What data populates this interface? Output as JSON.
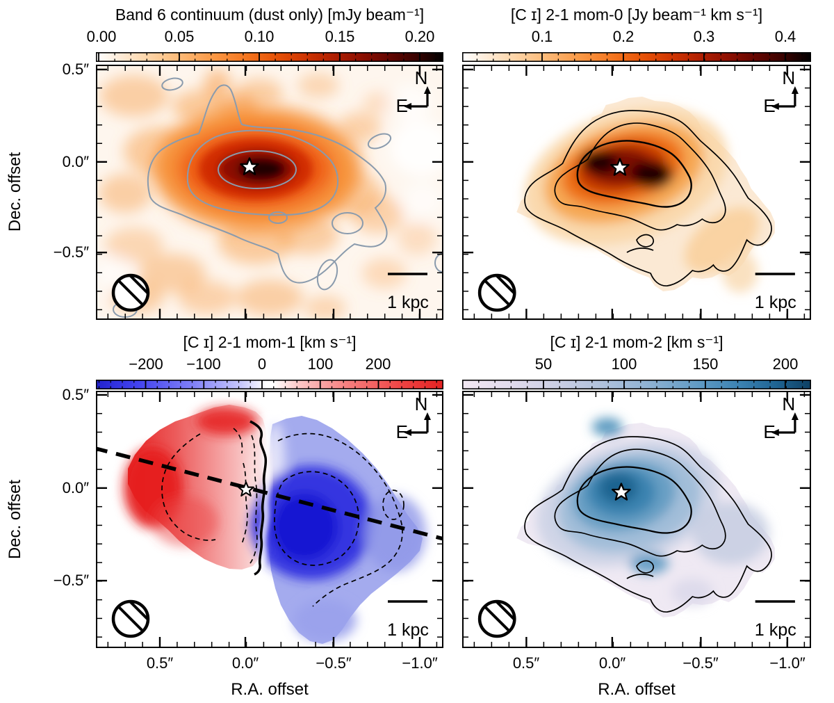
{
  "figure": {
    "ylabel": "Dec. offset",
    "xlabel": "R.A. offset",
    "y_tick_labels": [
      "0.5″",
      "0.0″",
      "−0.5″"
    ],
    "x_tick_labels": [
      "0.5″",
      "0.0″",
      "−0.5″",
      "−1.0″"
    ],
    "compass": {
      "north": "N",
      "east": "E"
    },
    "scalebar_label": "1 kpc"
  },
  "panels": [
    {
      "id": "band6-continuum",
      "title": "Band 6 continuum (dust only) [mJy beam⁻¹]",
      "cbar_ticks": [
        "0.00",
        "0.05",
        "0.10",
        "0.15",
        "0.20"
      ]
    },
    {
      "id": "ci21-mom0",
      "title": "[C ɪ] 2-1 mom-0 [Jy beam⁻¹ km s⁻¹]",
      "cbar_ticks": [
        "0.1",
        "0.2",
        "0.3",
        "0.4"
      ]
    },
    {
      "id": "ci21-mom1",
      "title": "[C ɪ] 2-1 mom-1 [km s⁻¹]",
      "cbar_ticks": [
        "−200",
        "−100",
        "0",
        "100",
        "200"
      ]
    },
    {
      "id": "ci21-mom2",
      "title": "[C ɪ] 2-1 mom-2 [km s⁻¹]",
      "cbar_ticks": [
        "50",
        "100",
        "150",
        "200"
      ]
    }
  ],
  "chart_data": [
    {
      "type": "heatmap",
      "panel": "top-left",
      "title": "Band 6 continuum (dust only) [mJy beam⁻¹]",
      "colorbar": {
        "orientation": "horizontal",
        "position": "top",
        "tick_values": [
          0.0,
          0.05,
          0.1,
          0.15,
          0.2
        ],
        "value_range": [
          0.0,
          0.215
        ],
        "units": "mJy beam⁻¹",
        "colormap_stops": [
          "#ffffff",
          "#fcba78",
          "#f4731d",
          "#d03603",
          "#8f1001",
          "#000000"
        ]
      },
      "x_axis": {
        "label": "R.A. offset",
        "tick_values_arcsec": [
          0.5,
          0.0,
          -0.5,
          -1.0
        ],
        "range_arcsec": [
          0.87,
          -1.13
        ],
        "minor_step_arcsec": 0.1,
        "tick_labels_shown": false
      },
      "y_axis": {
        "label": "Dec. offset",
        "tick_values_arcsec": [
          0.5,
          0.0,
          -0.5
        ],
        "range_arcsec": [
          0.53,
          -0.87
        ],
        "minor_step_arcsec": 0.1,
        "tick_labels_shown": true
      },
      "overlays": {
        "contours": "solid slate-gray intensity contours, 3 nested levels around peak plus small island contours",
        "contour_color": "#8a9bad",
        "star_marker_arcsec": [
          0.0,
          0.0
        ],
        "beam": "hatched open circle, lower-left",
        "scale_bar": "1 kpc, lower-right",
        "compass": "N arrow up, E arrow left, upper-right"
      },
      "morphology": "dust continuum: bright E-W elongated core peaking at origin (>0.2 mJy/beam, black), surrounded by clumpy diffuse emission ~0.03-0.06 mJy/beam over the whole field"
    },
    {
      "type": "heatmap",
      "panel": "top-right",
      "title": "[C ɪ] 2-1 mom-0 [Jy beam⁻¹ km s⁻¹]",
      "colorbar": {
        "orientation": "horizontal",
        "position": "top",
        "tick_values": [
          0.1,
          0.2,
          0.3,
          0.4
        ],
        "value_range": [
          0.0,
          0.43
        ],
        "units": "Jy beam⁻¹ km s⁻¹",
        "colormap_stops": [
          "#ffffff",
          "#fcba78",
          "#f4731d",
          "#d03603",
          "#8f1001",
          "#000000"
        ]
      },
      "x_axis": {
        "label": "R.A. offset",
        "tick_values_arcsec": [
          0.5,
          0.0,
          -0.5,
          -1.0
        ],
        "range_arcsec": [
          0.87,
          -1.13
        ],
        "tick_labels_shown": false
      },
      "y_axis": {
        "label": "Dec. offset",
        "tick_values_arcsec": [
          0.5,
          0.0,
          -0.5
        ],
        "range_arcsec": [
          0.53,
          -0.87
        ],
        "tick_labels_shown": false
      },
      "overlays": {
        "contours": "solid black integrated-intensity contours, 3 nested levels",
        "contour_color": "#000000",
        "star_marker_arcsec": [
          0.0,
          0.0
        ],
        "beam": "hatched open circle, lower-left",
        "scale_bar": "1 kpc, lower-right",
        "compass": "N arrow up, E arrow left, upper-right"
      },
      "morphology": "pixelated [C I] 2-1 emission blob elongated ENE-WSW with faint tail toward SW; two dark peaks (~0.4) bracketing the star at origin"
    },
    {
      "type": "heatmap",
      "panel": "bottom-left",
      "title": "[C ɪ] 2-1 mom-1 [km s⁻¹]",
      "colorbar": {
        "orientation": "horizontal",
        "position": "top",
        "tick_values": [
          -200,
          -100,
          0,
          100,
          200
        ],
        "value_range": [
          -285,
          305
        ],
        "units": "km s⁻¹",
        "colormap": "diverging blue-white-red (bwr)"
      },
      "x_axis": {
        "label": "R.A. offset",
        "tick_values_arcsec": [
          0.5,
          0.0,
          -0.5,
          -1.0
        ],
        "range_arcsec": [
          0.87,
          -1.13
        ],
        "tick_labels_shown": true
      },
      "y_axis": {
        "label": "Dec. offset",
        "tick_values_arcsec": [
          0.5,
          0.0,
          -0.5
        ],
        "range_arcsec": [
          0.53,
          -0.87
        ],
        "tick_labels_shown": true
      },
      "overlays": {
        "solid_contour": "thick black wavy line = 0 km s⁻¹ isovelocity through center",
        "dashed_contours": "thin black dashed isovelocity contours on both sides",
        "dashed_line": "thick black dashed straight line = kinematic major axis through origin, PA ~ ENE-WSW",
        "star_marker_arcsec": [
          0.0,
          0.0
        ],
        "beam": "hatched open circle, lower-left",
        "scale_bar": "1 kpc, lower-right",
        "compass": "N arrow up, E arrow left, upper-right"
      },
      "morphology": "rotating-disk velocity field: redshifted (+100 to +250 km s⁻¹) on E/NE (left) side, blueshifted (−100 to −250 km s⁻¹) on W/SW (right) side, deep blue minimum SW of center"
    },
    {
      "type": "heatmap",
      "panel": "bottom-right",
      "title": "[C ɪ] 2-1 mom-2 [km s⁻¹]",
      "colorbar": {
        "orientation": "horizontal",
        "position": "top",
        "tick_values": [
          50,
          100,
          150,
          200
        ],
        "value_range": [
          0,
          215
        ],
        "units": "km s⁻¹",
        "colormap": "light pink-lavender to dark steel blue"
      },
      "x_axis": {
        "label": "R.A. offset",
        "tick_values_arcsec": [
          0.5,
          0.0,
          -0.5,
          -1.0
        ],
        "range_arcsec": [
          0.87,
          -1.13
        ],
        "tick_labels_shown": true
      },
      "y_axis": {
        "label": "Dec. offset",
        "tick_values_arcsec": [
          0.5,
          0.0,
          -0.5
        ],
        "range_arcsec": [
          0.53,
          -0.87
        ],
        "tick_labels_shown": false
      },
      "overlays": {
        "contours": "black mom-0 integrated intensity contours overlaid",
        "star_marker_arcsec": [
          0.0,
          0.0
        ],
        "beam": "hatched open circle, lower-left",
        "scale_bar": "1 kpc, lower-right",
        "compass": "N arrow up, E arrow left, upper-right"
      },
      "morphology": "velocity dispersion peaks ~150-200 km s⁻¹ around the center (dark blue), decreasing to <50 km s⁻¹ (pale) at the blob edges"
    }
  ]
}
